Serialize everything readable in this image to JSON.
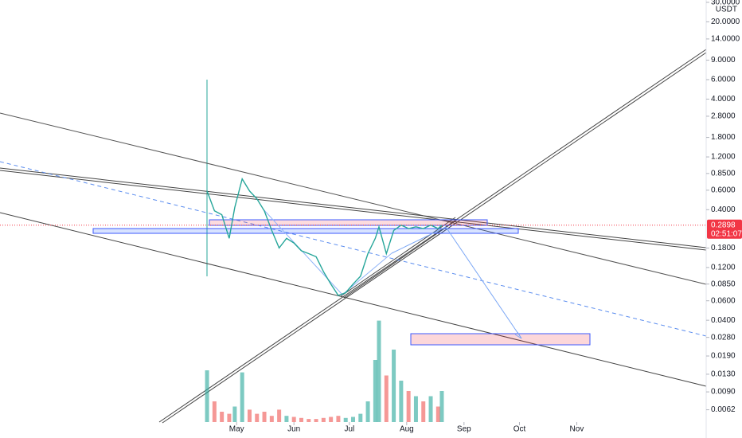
{
  "chart_data": {
    "type": "line",
    "currency": "USDT",
    "log_scale": true,
    "xlim": [
      -7,
      375
    ],
    "xticks": [
      {
        "value": 121,
        "label": "May"
      },
      {
        "value": 152,
        "label": "Jun"
      },
      {
        "value": 182,
        "label": "Jul"
      },
      {
        "value": 213,
        "label": "Aug"
      },
      {
        "value": 244,
        "label": "Sep"
      },
      {
        "value": 274,
        "label": "Oct"
      },
      {
        "value": 305,
        "label": "Nov"
      }
    ],
    "ylim": [
      0.0048,
      31.5
    ],
    "yticks": [
      {
        "value": 30,
        "label": "30.0000"
      },
      {
        "value": 20,
        "label": "20.0000"
      },
      {
        "value": 14,
        "label": "14.0000"
      },
      {
        "value": 9,
        "label": "9.0000"
      },
      {
        "value": 6,
        "label": "6.0000"
      },
      {
        "value": 4,
        "label": "4.0000"
      },
      {
        "value": 2.8,
        "label": "2.8000"
      },
      {
        "value": 1.8,
        "label": "1.8000"
      },
      {
        "value": 1.2,
        "label": "1.2000"
      },
      {
        "value": 0.85,
        "label": "0.8500"
      },
      {
        "value": 0.6,
        "label": "0.6000"
      },
      {
        "value": 0.4,
        "label": "0.4000"
      },
      {
        "value": 0.18,
        "label": "0.1800"
      },
      {
        "value": 0.12,
        "label": "0.1200"
      },
      {
        "value": 0.085,
        "label": "0.0850"
      },
      {
        "value": 0.06,
        "label": "0.0600"
      },
      {
        "value": 0.04,
        "label": "0.0400"
      },
      {
        "value": 0.028,
        "label": "0.0280"
      },
      {
        "value": 0.019,
        "label": "0.0190"
      },
      {
        "value": 0.013,
        "label": "0.0130"
      },
      {
        "value": 0.009,
        "label": "0.0090"
      },
      {
        "value": 0.0062,
        "label": "0.0062"
      }
    ],
    "last_price": {
      "value": 0.2898,
      "label": "0.2898"
    },
    "countdown": "02:51:07",
    "y2lim": [
      0,
      100
    ],
    "series": [
      {
        "color": "#26a69a",
        "x": [
          105,
          109,
          113,
          117,
          120,
          124,
          128,
          132,
          136,
          140,
          144,
          148,
          152,
          156,
          160,
          164,
          168,
          172,
          176,
          180,
          184,
          188,
          192,
          196,
          198,
          202,
          206,
          210,
          214,
          218,
          222,
          226,
          230,
          232
        ],
        "values": [
          0.59,
          0.39,
          0.36,
          0.22,
          0.42,
          0.76,
          0.59,
          0.5,
          0.39,
          0.26,
          0.18,
          0.22,
          0.2,
          0.17,
          0.16,
          0.15,
          0.11,
          0.085,
          0.067,
          0.071,
          0.085,
          0.1,
          0.16,
          0.22,
          0.28,
          0.16,
          0.26,
          0.29,
          0.27,
          0.28,
          0.27,
          0.29,
          0.27,
          0.2898
        ]
      },
      {
        "axis": "y2",
        "up_color": "#26a69a",
        "down_color": "#ef5350",
        "x": [
          105,
          109,
          113,
          117,
          120,
          124,
          128,
          132,
          136,
          140,
          144,
          148,
          152,
          156,
          160,
          164,
          168,
          172,
          176,
          180,
          184,
          188,
          192,
          196,
          198,
          202,
          206,
          210,
          214,
          218,
          222,
          226,
          230,
          232
        ],
        "values": [
          50,
          20,
          10,
          8,
          15,
          48,
          12,
          8,
          10,
          6,
          12,
          6,
          5,
          4,
          3,
          3,
          4,
          5,
          6,
          4,
          5,
          8,
          20,
          60,
          98,
          45,
          70,
          40,
          30,
          25,
          20,
          25,
          15,
          30
        ]
      }
    ]
  }
}
